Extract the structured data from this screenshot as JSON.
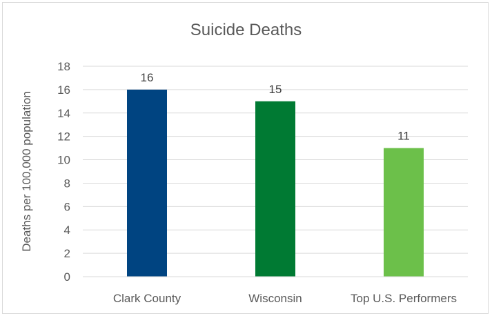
{
  "chart_data": {
    "type": "bar",
    "title": "Suicide Deaths",
    "xlabel": "",
    "ylabel": "Deaths per 100,000 population",
    "categories": [
      "Clark County",
      "Wisconsin",
      "Top U.S. Performers"
    ],
    "values": [
      16,
      15,
      11
    ],
    "data_labels": [
      "16",
      "15",
      "11"
    ],
    "bar_colors": [
      "#004481",
      "#007a33",
      "#6cc04a"
    ],
    "ylim": [
      0,
      18
    ],
    "yticks": [
      0,
      2,
      4,
      6,
      8,
      10,
      12,
      14,
      16,
      18
    ],
    "ytick_labels": [
      "0",
      "2",
      "4",
      "6",
      "8",
      "10",
      "12",
      "14",
      "16",
      "18"
    ],
    "grid": true,
    "legend": "none"
  }
}
